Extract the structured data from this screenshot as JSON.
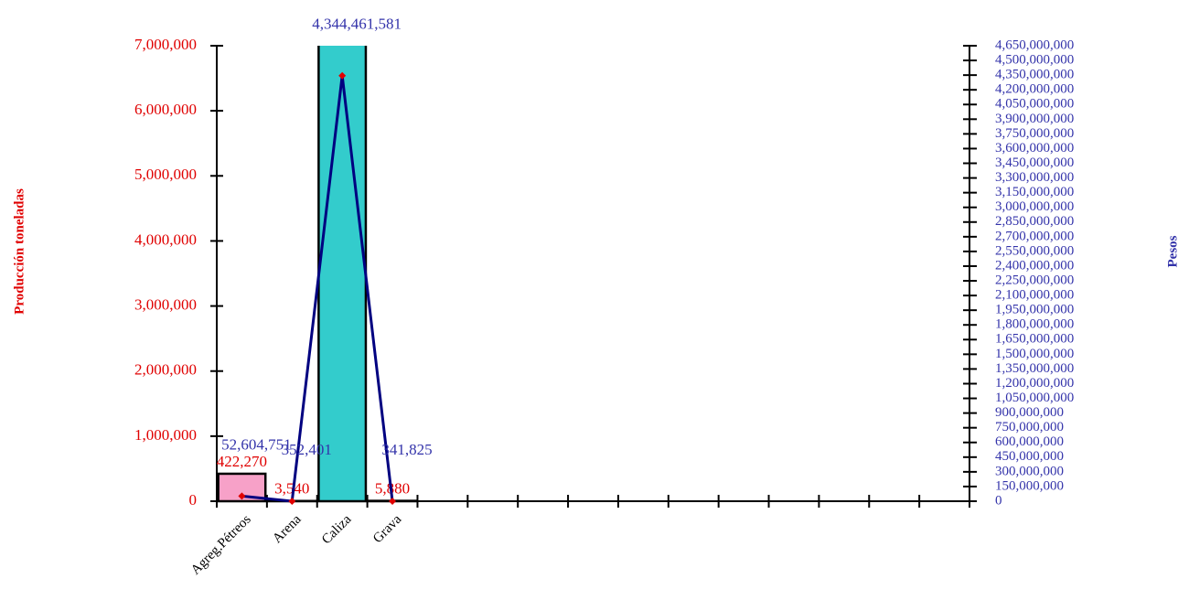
{
  "chart_data": {
    "type": "bar-line",
    "y_label": "Producción toneladas",
    "y2_label": "Pesos",
    "categories": [
      "Agreg.Pétreos",
      "Arena",
      "Caliza",
      "Grava",
      null,
      null,
      null,
      null,
      null,
      null,
      null,
      null,
      null,
      null,
      null
    ],
    "series": [
      {
        "type": "bar",
        "colors": [
          "#f7a1c8",
          "#f7a1c8",
          "#33cccc",
          "#33cccc",
          null,
          null,
          null,
          null,
          null,
          null,
          null,
          null,
          null,
          null,
          null
        ],
        "values": [
          422270,
          3540,
          7200000,
          5880,
          null,
          null,
          null,
          null,
          null,
          null,
          null,
          null,
          null,
          null,
          null
        ],
        "value_labels": [
          "422,270",
          "3,540",
          null,
          "5,880",
          null,
          null,
          null,
          null,
          null,
          null,
          null,
          null,
          null,
          null,
          null
        ]
      },
      {
        "type": "line",
        "axis": "y2",
        "color": "#000080",
        "marker_color": "#e00000",
        "values": [
          52604751,
          352401,
          4344461581,
          341825,
          null,
          null,
          null,
          null,
          null,
          null,
          null,
          null,
          null,
          null,
          null
        ],
        "value_labels": [
          "52,604,751",
          "352,401",
          "4,344,461,581",
          "341,825",
          null,
          null,
          null,
          null,
          null,
          null,
          null,
          null,
          null,
          null,
          null
        ]
      }
    ],
    "ylim": [
      0,
      7000000
    ],
    "yticks": [
      0,
      {
        "value": 1000000,
        "label": "1,000,000"
      },
      {
        "value": 2000000,
        "label": "2,000,000"
      },
      {
        "value": 3000000,
        "label": "3,000,000"
      },
      {
        "value": 4000000,
        "label": "4,000,000"
      },
      {
        "value": 5000000,
        "label": "5,000,000"
      },
      {
        "value": 6000000,
        "label": "6,000,000"
      },
      {
        "value": 7000000,
        "label": "7,000,000"
      }
    ],
    "y2lim": [
      0,
      4650000000
    ],
    "y2ticks": [
      0,
      {
        "value": 150000000,
        "label": "150,000,000"
      },
      {
        "value": 300000000,
        "label": "300,000,000"
      },
      {
        "value": 450000000,
        "label": "450,000,000"
      },
      {
        "value": 600000000,
        "label": "600,000,000"
      },
      {
        "value": 750000000,
        "label": "750,000,000"
      },
      {
        "value": 900000000,
        "label": "900,000,000"
      },
      {
        "value": 1050000000,
        "label": "1,050,000,000"
      },
      {
        "value": 1200000000,
        "label": "1,200,000,000"
      },
      {
        "value": 1350000000,
        "label": "1,350,000,000"
      },
      {
        "value": 1500000000,
        "label": "1,500,000,000"
      },
      {
        "value": 1650000000,
        "label": "1,650,000,000"
      },
      {
        "value": 1800000000,
        "label": "1,800,000,000"
      },
      {
        "value": 1950000000,
        "label": "1,950,000,000"
      },
      {
        "value": 2100000000,
        "label": "2,100,000,000"
      },
      {
        "value": 2250000000,
        "label": "2,250,000,000"
      },
      {
        "value": 2400000000,
        "label": "2,400,000,000"
      },
      {
        "value": 2550000000,
        "label": "2,550,000,000"
      },
      {
        "value": 2700000000,
        "label": "2,700,000,000"
      },
      {
        "value": 2850000000,
        "label": "2,850,000,000"
      },
      {
        "value": 3000000000,
        "label": "3,000,000,000"
      },
      {
        "value": 3150000000,
        "label": "3,150,000,000"
      },
      {
        "value": 3300000000,
        "label": "3,300,000,000"
      },
      {
        "value": 3450000000,
        "label": "3,450,000,000"
      },
      {
        "value": 3600000000,
        "label": "3,600,000,000"
      },
      {
        "value": 3750000000,
        "label": "3,750,000,000"
      },
      {
        "value": 3900000000,
        "label": "3,900,000,000"
      },
      {
        "value": 4050000000,
        "label": "4,050,000,000"
      },
      {
        "value": 4200000000,
        "label": "4,200,000,000"
      },
      {
        "value": 4350000000,
        "label": "4,350,000,000"
      },
      {
        "value": 4500000000,
        "label": "4,500,000,000"
      },
      {
        "value": 4650000000,
        "label": "4,650,000,000"
      }
    ]
  }
}
